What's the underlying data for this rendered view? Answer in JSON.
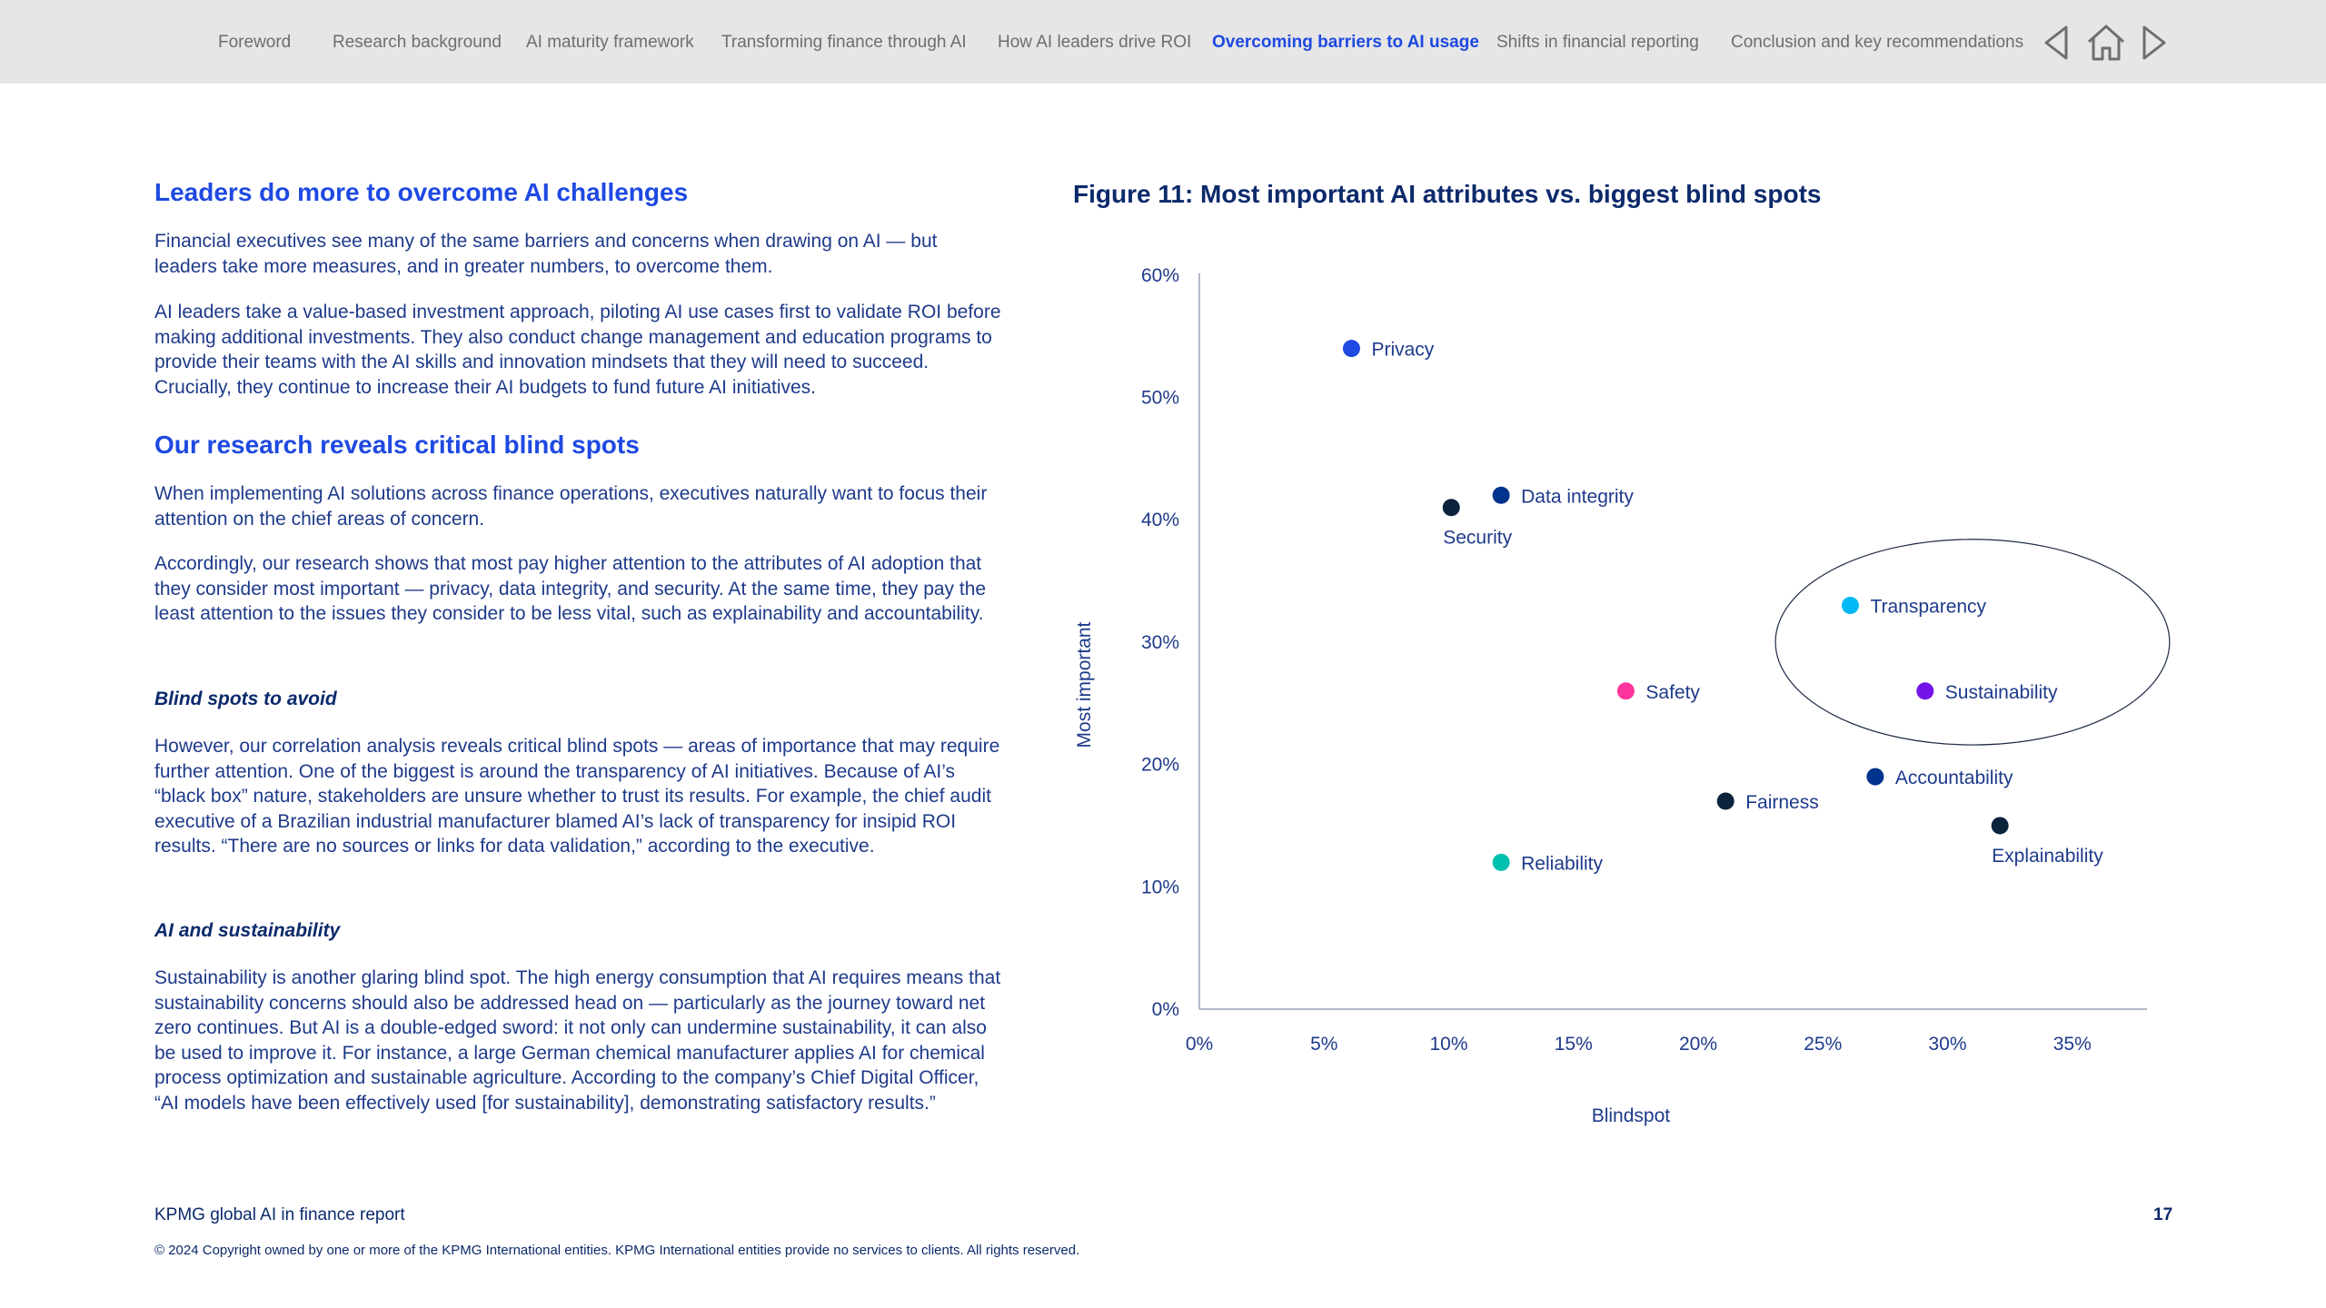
{
  "nav": {
    "items": [
      {
        "label": "Foreword",
        "active": false
      },
      {
        "label": "Research background",
        "active": false
      },
      {
        "label": "AI maturity framework",
        "active": false
      },
      {
        "label": "Transforming finance through AI",
        "active": false
      },
      {
        "label": "How AI leaders drive ROI",
        "active": false
      },
      {
        "label": "Overcoming barriers to AI usage",
        "active": true
      },
      {
        "label": "Shifts in financial reporting",
        "active": false
      },
      {
        "label": "Conclusion and key recommendations",
        "active": false
      }
    ],
    "icons": [
      "prev-arrow-icon",
      "home-icon",
      "next-arrow-icon"
    ]
  },
  "content": {
    "heading1": "Leaders do more to overcome AI challenges",
    "p1": "Financial executives see many of the same barriers and concerns when drawing on AI — but leaders take more measures, and in greater numbers, to overcome them.",
    "p2": "AI leaders take a value-based investment approach, piloting AI use cases first to validate ROI before making additional investments. They also conduct change management and education programs to provide their teams with the AI skills and innovation mindsets that they will need to succeed. Crucially, they continue to increase their AI budgets to fund future AI initiatives.",
    "heading2": "Our research reveals critical blind spots",
    "p3": "When implementing AI solutions across finance operations, executives naturally want to focus their attention on the chief areas of concern.",
    "p4": "Accordingly, our research shows that most pay higher attention to the attributes of AI adoption that they consider most important — privacy, data integrity, and security. At the same time, they pay the least attention to the issues they consider to be less vital, such as explainability and accountability.",
    "subheading1": "Blind spots to avoid",
    "p5": "However, our correlation analysis reveals critical blind spots — areas of importance that may require further attention. One of the biggest is around the transparency of AI initiatives. Because of AI’s “black box” nature, stakeholders are unsure whether to trust its results. For example, the chief audit executive of a Brazilian industrial manufacturer blamed AI’s lack of transparency for insipid ROI results. “There are no sources or links for data validation,” according to the executive.",
    "subheading2": "AI and sustainability",
    "p6": "Sustainability is another glaring blind spot. The high energy consumption that AI requires means that sustainability concerns should also be addressed head on — particularly as the journey toward net zero continues. But AI is a double-edged sword: it not only can undermine sustainability, it can also be used to improve it. For instance, a large German chemical manufacturer applies AI for chemical process optimization and sustainable agriculture. According to the company’s Chief Digital Officer, “AI models have been effectively used [for sustainability], demonstrating satisfactory results.”"
  },
  "figure": {
    "title": "Figure 11: Most important AI attributes vs. biggest blind spots"
  },
  "chart_data": {
    "type": "scatter",
    "title": "Figure 11: Most important AI attributes vs. biggest blind spots",
    "xlabel": "Blindspot",
    "ylabel": "Most important",
    "xlim": [
      0,
      38
    ],
    "ylim": [
      0,
      60
    ],
    "x_ticks": [
      0,
      5,
      10,
      15,
      20,
      25,
      30,
      35
    ],
    "y_ticks": [
      0,
      10,
      20,
      30,
      40,
      50,
      60
    ],
    "x_tick_labels": [
      "0%",
      "5%",
      "10%",
      "15%",
      "20%",
      "25%",
      "30%",
      "35%"
    ],
    "y_tick_labels": [
      "0%",
      "10%",
      "20%",
      "30%",
      "40%",
      "50%",
      "60%"
    ],
    "grid": false,
    "points": [
      {
        "label": "Privacy",
        "x": 6.1,
        "y": 54.0,
        "color": "#1e49e2",
        "label_pos": "right"
      },
      {
        "label": "Data integrity",
        "x": 12.1,
        "y": 42.0,
        "color": "#00338d",
        "label_pos": "right"
      },
      {
        "label": "Security",
        "x": 10.1,
        "y": 41.0,
        "color": "#0c233c",
        "label_pos": "below"
      },
      {
        "label": "Transparency",
        "x": 26.1,
        "y": 33.0,
        "color": "#00b8f5",
        "label_pos": "right"
      },
      {
        "label": "Safety",
        "x": 17.1,
        "y": 26.0,
        "color": "#fd349c",
        "label_pos": "right"
      },
      {
        "label": "Sustainability",
        "x": 29.1,
        "y": 26.0,
        "color": "#7213ea",
        "label_pos": "right"
      },
      {
        "label": "Accountability",
        "x": 27.1,
        "y": 19.0,
        "color": "#00338d",
        "label_pos": "right"
      },
      {
        "label": "Fairness",
        "x": 21.1,
        "y": 17.0,
        "color": "#0c233c",
        "label_pos": "right"
      },
      {
        "label": "Explainability",
        "x": 32.1,
        "y": 15.0,
        "color": "#0c233c",
        "label_pos": "below"
      },
      {
        "label": "Reliability",
        "x": 12.1,
        "y": 12.0,
        "color": "#00c0ae",
        "label_pos": "right"
      }
    ],
    "highlight_ellipse": {
      "cx": 31,
      "cy": 30,
      "rx": 7.9,
      "ry": 8.4
    }
  },
  "footer": {
    "report_title": "KPMG global AI in finance report",
    "page_number": "17",
    "copyright": "© 2024 Copyright owned by one or more of the KPMG International entities. KPMG International entities provide no services to clients. All rights reserved."
  }
}
